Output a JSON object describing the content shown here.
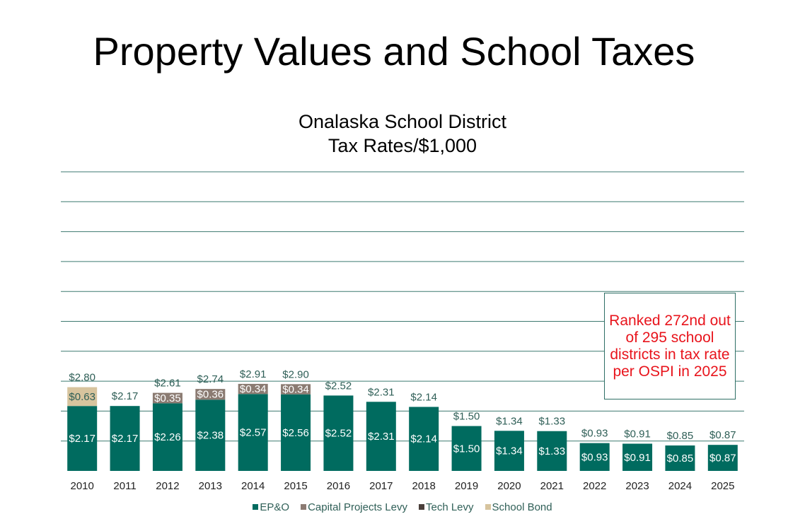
{
  "page_title": "Property Values and School Taxes",
  "note": "Ranked 272nd out of 295 school districts in tax rate per OSPI in 2025",
  "chart_data": {
    "type": "bar",
    "stacked": true,
    "title": [
      "Onalaska School District",
      "Tax Rates/$1,000"
    ],
    "xlabel": "",
    "ylabel": "",
    "ylim": [
      0,
      10
    ],
    "grid": true,
    "legend_position": "bottom",
    "categories": [
      "2010",
      "2011",
      "2012",
      "2013",
      "2014",
      "2015",
      "2016",
      "2017",
      "2018",
      "2019",
      "2020",
      "2021",
      "2022",
      "2023",
      "2024",
      "2025"
    ],
    "series": [
      {
        "name": "EP&O",
        "color": "#006b5f",
        "values": [
          2.17,
          2.17,
          2.26,
          2.38,
          2.57,
          2.56,
          2.52,
          2.31,
          2.14,
          1.5,
          1.34,
          1.33,
          0.93,
          0.91,
          0.85,
          0.87
        ]
      },
      {
        "name": "Capital Projects Levy",
        "color": "#8b7b72",
        "values": [
          0,
          0,
          0.35,
          0.36,
          0.34,
          0.34,
          0,
          0,
          0,
          0,
          0,
          0,
          0,
          0,
          0,
          0
        ]
      },
      {
        "name": "Tech Levy",
        "color": "#4a3f3a",
        "values": [
          0,
          0,
          0,
          0,
          0,
          0,
          0,
          0,
          0,
          0,
          0,
          0,
          0,
          0,
          0,
          0
        ]
      },
      {
        "name": "School Bond",
        "color": "#d7c49e",
        "values": [
          0.63,
          0,
          0,
          0,
          0,
          0,
          0,
          0,
          0,
          0,
          0,
          0,
          0,
          0,
          0,
          0
        ]
      }
    ],
    "totals": [
      "$2.80",
      "$2.17",
      "$2.61",
      "$2.74",
      "$2.91",
      "$2.90",
      "$2.52",
      "$2.31",
      "$2.14",
      "$1.50",
      "$1.34",
      "$1.33",
      "$0.93",
      "$0.91",
      "$0.85",
      "$0.87"
    ],
    "segment_labels": [
      [
        "$2.17",
        "$2.17",
        "$2.26",
        "$2.38",
        "$2.57",
        "$2.56",
        "$2.52",
        "$2.31",
        "$2.14",
        "$1.50",
        "$1.34",
        "$1.33",
        "$0.93",
        "$0.91",
        "$0.85",
        "$0.87"
      ],
      [
        "",
        "",
        "$0.35",
        "$0.36",
        "$0.34",
        "$0.34",
        "",
        "",
        "",
        "",
        "",
        "",
        "",
        "",
        "",
        ""
      ],
      [
        "",
        "",
        "",
        "",
        "",
        "",
        "",
        "",
        "",
        "",
        "",
        "",
        "",
        "",
        "",
        ""
      ],
      [
        "$0.63",
        "",
        "",
        "",
        "",
        "",
        "",
        "",
        "",
        "",
        "",
        "",
        "",
        "",
        "",
        ""
      ]
    ]
  }
}
